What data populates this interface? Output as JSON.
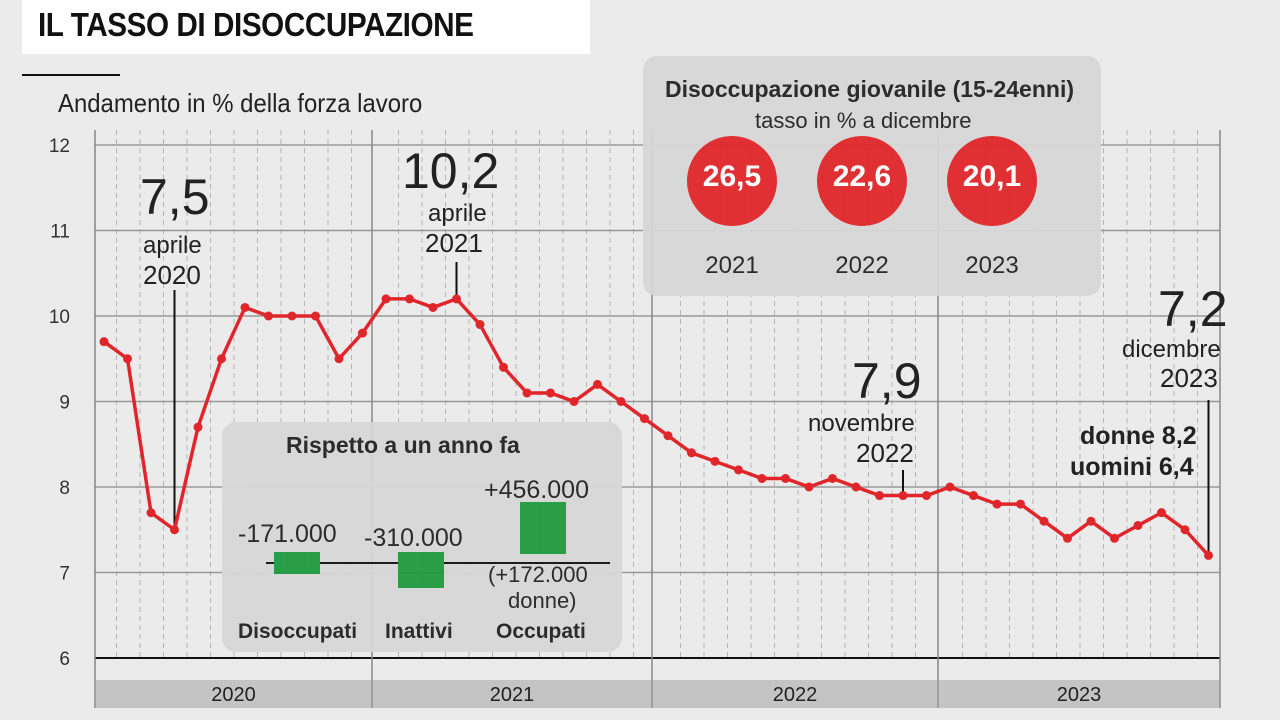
{
  "title": "IL TASSO DI DISOCCUPAZIONE",
  "subtitle": "Andamento in % della forza lavoro",
  "chart_data": {
    "type": "line",
    "title": "IL TASSO DI DISOCCUPAZIONE",
    "ylabel": "Andamento in % della forza lavoro",
    "ylim": [
      6,
      12
    ],
    "yticks": [
      "6",
      "7",
      "8",
      "9",
      "10",
      "11",
      "12"
    ],
    "xlim": [
      "2020-01",
      "2023-12"
    ],
    "year_labels": [
      "2020",
      "2021",
      "2022",
      "2023"
    ],
    "grid": true,
    "line_color": "#e0262b",
    "series": [
      {
        "x": [
          "2020-01",
          "2020-02",
          "2020-03",
          "2020-04",
          "2020-05",
          "2020-06",
          "2020-07",
          "2020-08",
          "2020-09",
          "2020-10",
          "2020-11",
          "2020-12",
          "2021-01",
          "2021-02",
          "2021-03",
          "2021-04",
          "2021-05",
          "2021-06",
          "2021-07",
          "2021-08",
          "2021-09",
          "2021-10",
          "2021-11",
          "2021-12",
          "2022-01",
          "2022-02",
          "2022-03",
          "2022-04",
          "2022-05",
          "2022-06",
          "2022-07",
          "2022-08",
          "2022-09",
          "2022-10",
          "2022-11",
          "2022-12",
          "2023-01",
          "2023-02",
          "2023-03",
          "2023-04",
          "2023-05",
          "2023-06",
          "2023-07",
          "2023-08",
          "2023-09",
          "2023-10",
          "2023-11",
          "2023-12"
        ],
        "values": [
          9.7,
          9.5,
          7.7,
          7.5,
          8.7,
          9.5,
          10.1,
          10.0,
          10.0,
          10.0,
          9.5,
          9.8,
          10.2,
          10.2,
          10.1,
          10.2,
          9.9,
          9.4,
          9.1,
          9.1,
          9.0,
          9.2,
          9.0,
          8.8,
          8.6,
          8.4,
          8.3,
          8.2,
          8.1,
          8.1,
          8.0,
          8.1,
          8.0,
          7.9,
          7.9,
          7.9,
          8.0,
          7.9,
          7.8,
          7.8,
          7.6,
          7.4,
          7.6,
          7.4,
          7.55,
          7.7,
          7.5,
          7.2
        ]
      }
    ],
    "annotations": [
      {
        "value": "7,5",
        "l1": "aprile",
        "l2": "2020",
        "x": "2020-04"
      },
      {
        "value": "10,2",
        "l1": "aprile",
        "l2": "2021",
        "x": "2021-04"
      },
      {
        "value": "7,9",
        "l1": "novembre",
        "l2": "2022",
        "x": "2022-11"
      },
      {
        "value": "7,2",
        "l1": "dicembre",
        "l2": "2023",
        "x": "2023-12"
      }
    ],
    "gender_note": {
      "women": "donne 8,2",
      "men": "uomini 6,4"
    }
  },
  "youth": {
    "title": "Disoccupazione giovanile (15-24enni)",
    "subtitle": "tasso in % a dicembre",
    "color": "#e0262b",
    "items": [
      {
        "value": "26,5",
        "year": "2021"
      },
      {
        "value": "22,6",
        "year": "2022"
      },
      {
        "value": "20,1",
        "year": "2023"
      }
    ]
  },
  "yoy": {
    "title": "Rispetto a un anno fa",
    "bar_color": "#1f9a3e",
    "items": [
      {
        "value": "-171.000",
        "label": "Disoccupati",
        "num": -171000
      },
      {
        "value": "-310.000",
        "label": "Inattivi",
        "num": -310000
      },
      {
        "value": "+456.000",
        "label": "Occupati",
        "num": 456000
      }
    ],
    "note1": "(+172.000",
    "note2": "donne)"
  }
}
